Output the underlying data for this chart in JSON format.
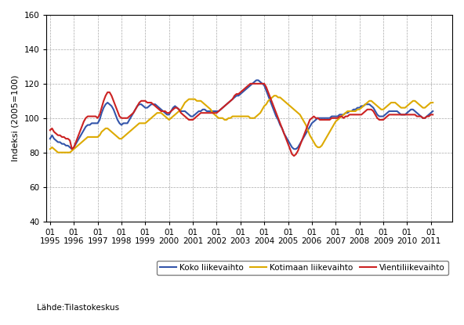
{
  "title": "",
  "ylabel": "Indeksi (2005=100)",
  "source_label": "Lähde:Tilastokeskus",
  "ylim": [
    40,
    160
  ],
  "yticks": [
    40,
    60,
    80,
    100,
    120,
    140,
    160
  ],
  "legend_labels": [
    "Koko liikevaihto",
    "Kotimaan liikevaihto",
    "Vientiliikevaihto"
  ],
  "line_colors": [
    "#3355aa",
    "#ddaa00",
    "#cc2222"
  ],
  "line_width": 1.5,
  "background_color": "#ffffff",
  "grid_color": "#aaaaaa",
  "koko_liikevaihto": [
    88,
    90,
    88,
    87,
    86,
    86,
    85,
    85,
    84,
    84,
    83,
    82,
    83,
    85,
    87,
    89,
    91,
    93,
    95,
    96,
    96,
    97,
    97,
    97,
    97,
    99,
    103,
    106,
    108,
    109,
    108,
    107,
    105,
    102,
    99,
    97,
    96,
    97,
    97,
    97,
    99,
    101,
    103,
    105,
    107,
    108,
    108,
    107,
    106,
    106,
    107,
    108,
    108,
    108,
    107,
    106,
    105,
    104,
    103,
    102,
    102,
    104,
    106,
    107,
    106,
    105,
    104,
    104,
    104,
    103,
    102,
    101,
    101,
    102,
    103,
    104,
    104,
    105,
    105,
    104,
    104,
    104,
    104,
    104,
    104,
    104,
    105,
    106,
    107,
    108,
    109,
    110,
    111,
    112,
    113,
    113,
    114,
    115,
    116,
    117,
    118,
    119,
    120,
    121,
    122,
    122,
    121,
    120,
    119,
    116,
    113,
    110,
    107,
    104,
    101,
    99,
    96,
    94,
    91,
    89,
    87,
    85,
    83,
    82,
    82,
    83,
    85,
    87,
    89,
    91,
    93,
    95,
    97,
    98,
    99,
    100,
    100,
    100,
    100,
    100,
    100,
    100,
    101,
    101,
    101,
    101,
    102,
    102,
    102,
    103,
    103,
    104,
    104,
    105,
    105,
    106,
    106,
    107,
    107,
    108,
    108,
    108,
    107,
    106,
    104,
    102,
    101,
    101,
    101,
    102,
    103,
    104,
    104,
    104,
    104,
    104,
    103,
    102,
    102,
    102,
    103,
    104,
    105,
    105,
    104,
    103,
    102,
    101,
    100,
    100,
    101,
    102,
    103,
    104
  ],
  "kotimaan_liikevaihto": [
    82,
    83,
    82,
    81,
    80,
    80,
    80,
    80,
    80,
    80,
    80,
    81,
    82,
    83,
    84,
    85,
    86,
    87,
    88,
    89,
    89,
    89,
    89,
    89,
    89,
    90,
    92,
    93,
    94,
    94,
    93,
    92,
    91,
    90,
    89,
    88,
    88,
    89,
    90,
    91,
    92,
    93,
    94,
    95,
    96,
    97,
    97,
    97,
    97,
    98,
    99,
    100,
    101,
    102,
    103,
    103,
    103,
    102,
    101,
    100,
    99,
    100,
    101,
    102,
    103,
    104,
    105,
    107,
    109,
    110,
    111,
    111,
    111,
    111,
    110,
    110,
    110,
    109,
    108,
    107,
    106,
    105,
    103,
    102,
    101,
    100,
    100,
    100,
    99,
    99,
    100,
    100,
    101,
    101,
    101,
    101,
    101,
    101,
    101,
    101,
    101,
    100,
    100,
    100,
    101,
    102,
    103,
    105,
    107,
    108,
    110,
    111,
    112,
    113,
    113,
    112,
    112,
    111,
    110,
    109,
    108,
    107,
    106,
    105,
    104,
    103,
    102,
    100,
    98,
    96,
    93,
    90,
    88,
    86,
    84,
    83,
    83,
    84,
    86,
    88,
    90,
    92,
    94,
    96,
    98,
    99,
    100,
    101,
    102,
    103,
    104,
    104,
    104,
    104,
    104,
    105,
    105,
    106,
    107,
    108,
    109,
    110,
    110,
    109,
    108,
    107,
    106,
    105,
    105,
    106,
    107,
    108,
    109,
    109,
    109,
    108,
    107,
    106,
    106,
    106,
    107,
    108,
    109,
    110,
    110,
    109,
    108,
    107,
    106,
    106,
    107,
    108,
    109,
    109
  ],
  "vienti_liikevaihto": [
    93,
    94,
    92,
    91,
    90,
    90,
    89,
    89,
    88,
    88,
    87,
    82,
    83,
    86,
    89,
    92,
    95,
    98,
    100,
    101,
    101,
    101,
    101,
    101,
    100,
    102,
    106,
    110,
    113,
    115,
    115,
    113,
    110,
    107,
    104,
    101,
    100,
    100,
    100,
    100,
    101,
    102,
    103,
    105,
    107,
    109,
    110,
    110,
    110,
    109,
    109,
    109,
    108,
    107,
    106,
    105,
    104,
    104,
    104,
    103,
    103,
    104,
    105,
    106,
    106,
    105,
    103,
    102,
    101,
    100,
    99,
    99,
    99,
    100,
    101,
    102,
    103,
    103,
    103,
    103,
    103,
    103,
    103,
    103,
    103,
    104,
    105,
    106,
    107,
    108,
    109,
    110,
    111,
    113,
    114,
    114,
    115,
    116,
    117,
    118,
    119,
    120,
    120,
    120,
    120,
    120,
    120,
    120,
    120,
    118,
    115,
    112,
    109,
    106,
    103,
    100,
    97,
    94,
    91,
    88,
    85,
    82,
    79,
    78,
    79,
    81,
    84,
    87,
    90,
    93,
    96,
    99,
    100,
    101,
    100,
    100,
    99,
    99,
    99,
    99,
    99,
    99,
    100,
    100,
    100,
    100,
    101,
    101,
    100,
    101,
    101,
    102,
    102,
    102,
    102,
    102,
    102,
    102,
    103,
    104,
    105,
    105,
    105,
    104,
    102,
    100,
    99,
    99,
    99,
    100,
    101,
    102,
    102,
    102,
    102,
    102,
    102,
    102,
    102,
    102,
    102,
    102,
    102,
    102,
    102,
    101,
    101,
    101,
    100,
    100,
    101,
    101,
    102,
    102
  ],
  "n_points": 194,
  "start_year": 1995,
  "start_month": 1,
  "end_year": 2011,
  "end_month": 9
}
